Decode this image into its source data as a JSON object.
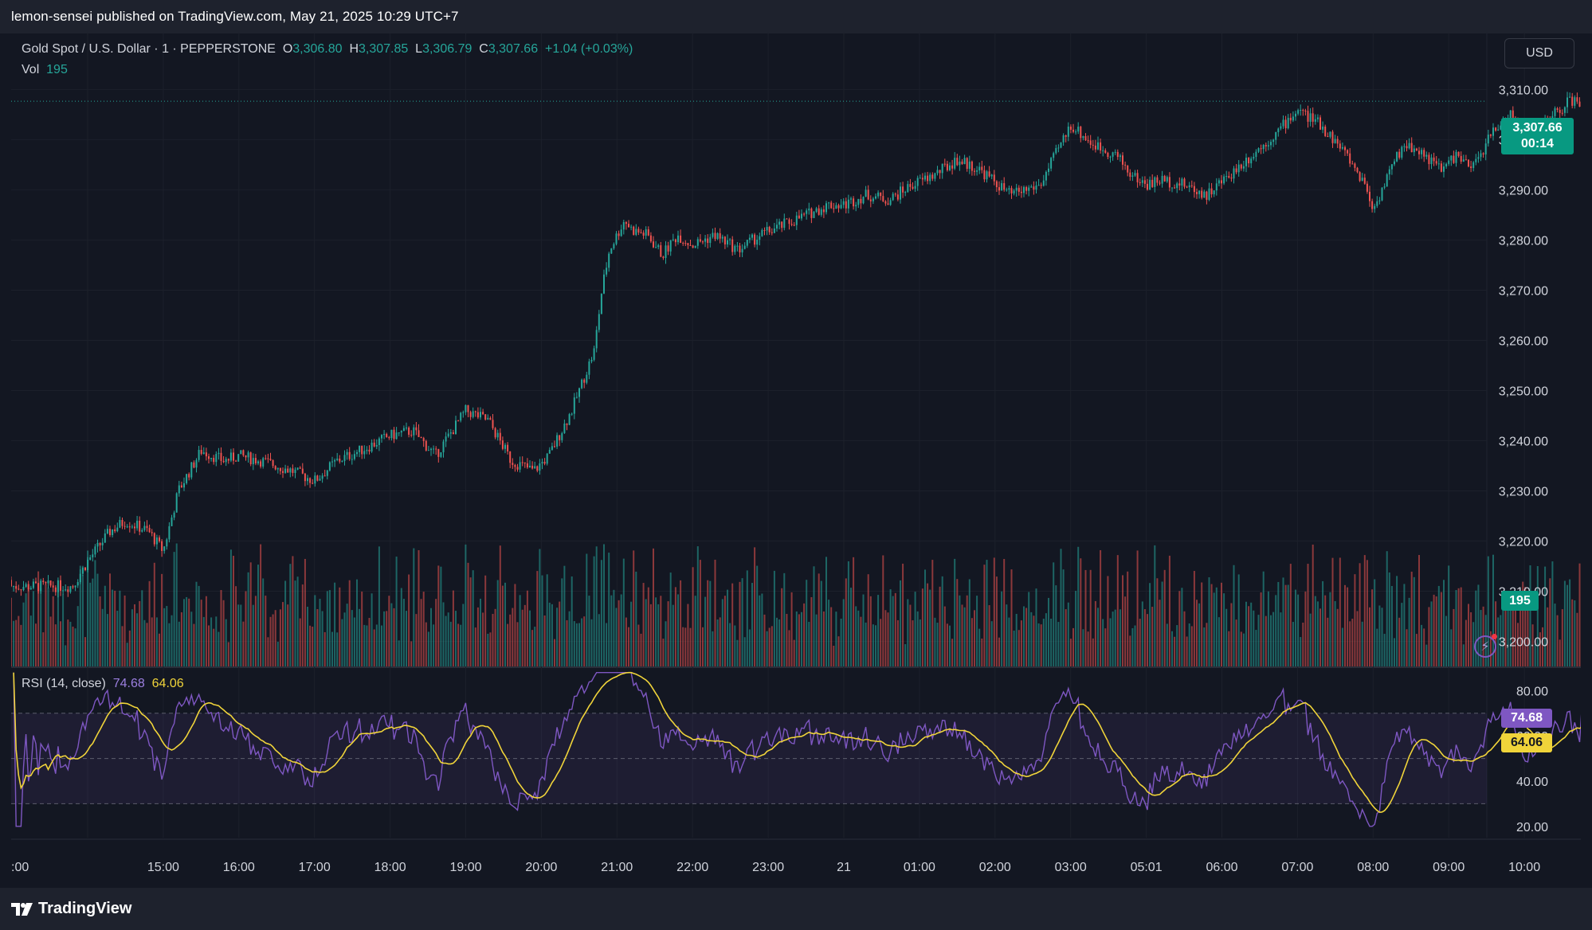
{
  "header": {
    "publish_line": "lemon-sensei published on TradingView.com, May 21, 2025 10:29 UTC+7"
  },
  "legend": {
    "symbol": "Gold Spot / U.S. Dollar · 1 · PEPPERSTONE",
    "o_label": "O",
    "o_value": "3,306.80",
    "h_label": "H",
    "h_value": "3,307.85",
    "l_label": "L",
    "l_value": "3,306.79",
    "c_label": "C",
    "c_value": "3,307.66",
    "change": "+1.04 (+0.03%)",
    "vol_label": "Vol",
    "vol_value": "195",
    "rsi_label": "RSI (14, close)",
    "rsi_value": "74.68",
    "rsi_ma_value": "64.06"
  },
  "currency_button": "USD",
  "price_badge": {
    "price": "3,307.66",
    "countdown": "00:14"
  },
  "volume_badge": "195",
  "rsi_badges": {
    "rsi": "74.68",
    "ma": "64.06"
  },
  "footer": {
    "brand": "TradingView"
  },
  "colors": {
    "background": "#131722",
    "up": "#26a69a",
    "down": "#ef5350",
    "rsi": "#7e57c2",
    "rsi_ma": "#f0d43a",
    "badge_green": "#089981"
  },
  "chart_data": [
    {
      "type": "candlestick",
      "title": "Gold Spot / U.S. Dollar · 1 · PEPPERSTONE",
      "ylim": [
        3195,
        3318
      ],
      "y_ticks": [
        "3,310.00",
        "3,300.00",
        "3,290.00",
        "3,280.00",
        "3,270.00",
        "3,260.00",
        "3,250.00",
        "3,240.00",
        "3,230.00",
        "3,220.00",
        "3,210.00",
        "3,200.00"
      ],
      "y_tick_values": [
        3310,
        3300,
        3290,
        3280,
        3270,
        3260,
        3250,
        3240,
        3230,
        3220,
        3210,
        3200
      ],
      "x_ticks": [
        ":00",
        "15:00",
        "16:00",
        "17:00",
        "18:00",
        "19:00",
        "20:00",
        "21:00",
        "22:00",
        "23:00",
        "21",
        "01:00",
        "02:00",
        "03:00",
        "05:01",
        "06:00",
        "07:00",
        "08:00",
        "09:00",
        "10:00"
      ],
      "x_tick_positions": [
        0,
        1,
        2,
        3,
        4,
        5,
        6,
        7,
        8,
        9,
        10,
        11,
        12,
        13,
        14,
        15,
        16,
        17,
        18,
        19
      ],
      "price_path_hours": [
        -0.2,
        0.0,
        0.3,
        0.5,
        0.8,
        1.0,
        1.2,
        1.5,
        1.8,
        2.0,
        2.3,
        2.7,
        3.0,
        3.3,
        3.6,
        4.0,
        4.3,
        4.6,
        5.0,
        5.3,
        5.6,
        5.9,
        6.1,
        6.4,
        6.7,
        6.8,
        6.9,
        7.0,
        7.1,
        7.2,
        7.4,
        7.6,
        7.8,
        8.0,
        8.3,
        8.6,
        8.9,
        9.2,
        9.5,
        9.8,
        10.0,
        10.3,
        10.6,
        10.9,
        11.2,
        11.5,
        11.8,
        12.2,
        12.6,
        13.0,
        13.3,
        13.6,
        13.8,
        14.0,
        14.2,
        14.5,
        14.8,
        15.1,
        15.4,
        15.7,
        16.0,
        16.3,
        16.6,
        16.9,
        17.0,
        17.2,
        17.4,
        17.6,
        17.9,
        18.1,
        18.3,
        18.6,
        18.8,
        19.0,
        19.2,
        19.4,
        19.6,
        19.8
      ],
      "price_path_values": [
        3211,
        3216,
        3222,
        3224,
        3222,
        3218,
        3230,
        3238,
        3236,
        3237,
        3236,
        3234,
        3232,
        3236,
        3238,
        3241,
        3242,
        3237,
        3246,
        3244,
        3236,
        3234,
        3237,
        3246,
        3258,
        3270,
        3278,
        3281,
        3284,
        3282,
        3281,
        3277,
        3281,
        3279,
        3281,
        3278,
        3281,
        3283,
        3285,
        3287,
        3287,
        3289,
        3288,
        3291,
        3293,
        3296,
        3294,
        3289,
        3291,
        3303,
        3299,
        3297,
        3293,
        3291,
        3292,
        3291,
        3289,
        3293,
        3297,
        3301,
        3306,
        3303,
        3298,
        3291,
        3286,
        3293,
        3299,
        3298,
        3294,
        3297,
        3294,
        3302,
        3305,
        3301,
        3302,
        3305,
        3307.66,
        3307.66
      ],
      "volume_axis_max": 300,
      "last_volume": 195
    },
    {
      "type": "line",
      "title": "RSI (14, close)",
      "ylim": [
        15,
        90
      ],
      "y_ticks": [
        "80.00",
        "60.00",
        "40.00",
        "20.00"
      ],
      "y_tick_values": [
        80,
        60,
        40,
        20
      ],
      "bands": {
        "upper": 70,
        "middle": 50,
        "lower": 30
      },
      "series": [
        {
          "name": "RSI",
          "last": 74.68
        },
        {
          "name": "MA",
          "last": 64.06
        }
      ]
    }
  ]
}
